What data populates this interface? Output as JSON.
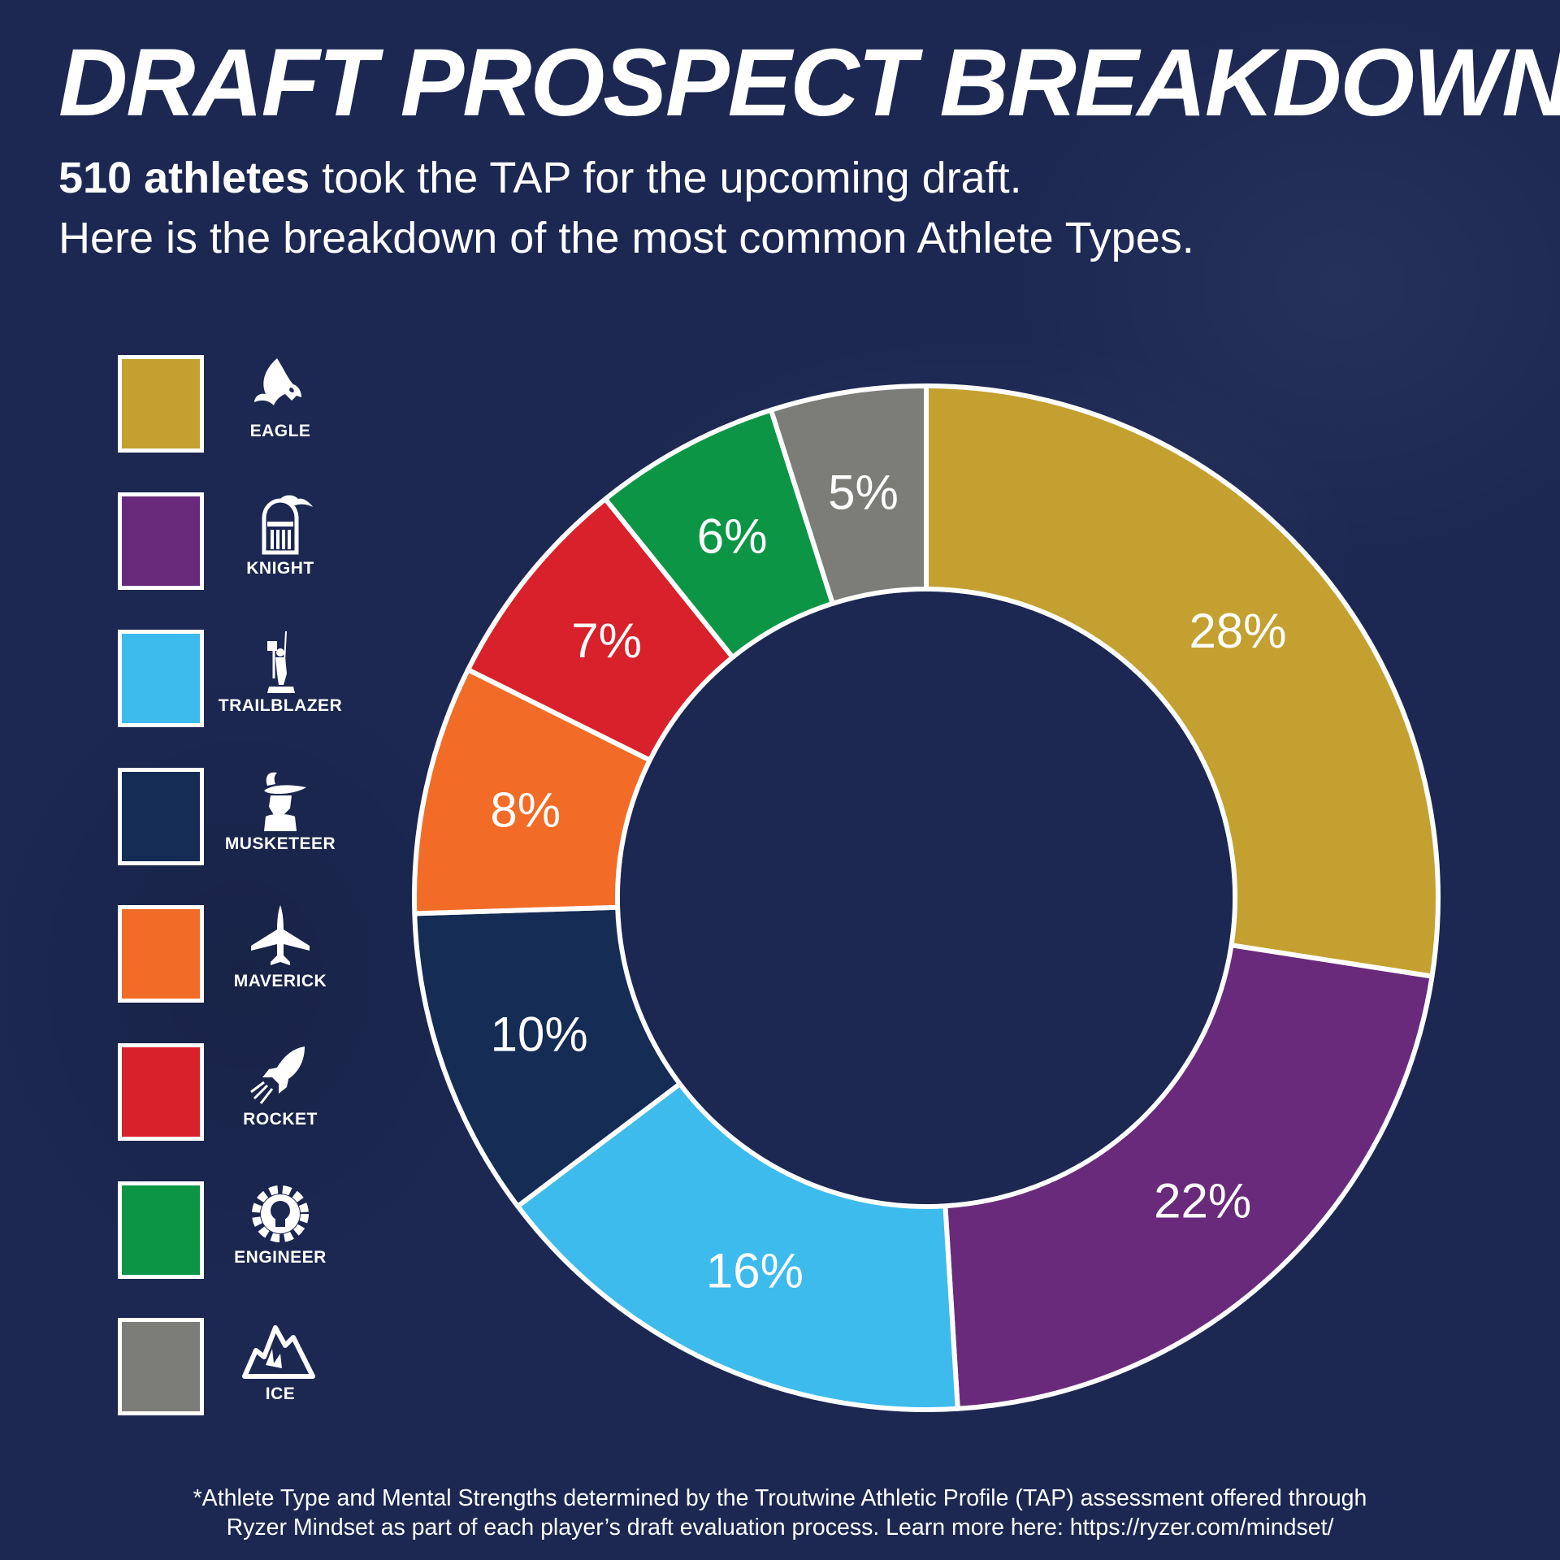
{
  "title": "DRAFT PROSPECT BREAKDOWN",
  "subtitle": {
    "bold": "510 athletes",
    "line1_rest": " took the TAP for the upcoming draft.",
    "line2": "Here is the breakdown of the most common Athlete Types."
  },
  "legend": [
    {
      "label": "EAGLE",
      "color": "#c4a030",
      "icon": "eagle-icon"
    },
    {
      "label": "KNIGHT",
      "color": "#6a2a7b",
      "icon": "knight-helmet-icon"
    },
    {
      "label": "TRAILBLAZER",
      "color": "#3dbbec",
      "icon": "trailblazer-flag-icon"
    },
    {
      "label": "MUSKETEER",
      "color": "#152c54",
      "icon": "musketeer-icon"
    },
    {
      "label": "MAVERICK",
      "color": "#f26c28",
      "icon": "jet-icon"
    },
    {
      "label": "ROCKET",
      "color": "#d8212b",
      "icon": "rocket-icon"
    },
    {
      "label": "ENGINEER",
      "color": "#0d9546",
      "icon": "gear-bulb-icon"
    },
    {
      "label": "ICE",
      "color": "#7c7d79",
      "icon": "ice-mountain-icon"
    }
  ],
  "chart_data": {
    "type": "pie",
    "variant": "donut",
    "categories": [
      "EAGLE",
      "KNIGHT",
      "TRAILBLAZER",
      "MUSKETEER",
      "MAVERICK",
      "ROCKET",
      "ENGINEER",
      "ICE"
    ],
    "values": [
      28,
      22,
      16,
      10,
      8,
      7,
      6,
      5
    ],
    "labels": [
      "28%",
      "22%",
      "16%",
      "10%",
      "8%",
      "7%",
      "6%",
      "5%"
    ],
    "colors": [
      "#c4a030",
      "#6a2a7b",
      "#3dbbec",
      "#152c54",
      "#f26c28",
      "#d8212b",
      "#0d9546",
      "#7c7d79"
    ],
    "legend_position": "left"
  },
  "footnote": {
    "line1": "*Athlete Type and Mental Strengths determined by the Troutwine Athletic Profile (TAP) assessment offered through",
    "line2": "Ryzer Mindset as part of each player’s draft evaluation process.  Learn more here: https://ryzer.com/mindset/"
  }
}
